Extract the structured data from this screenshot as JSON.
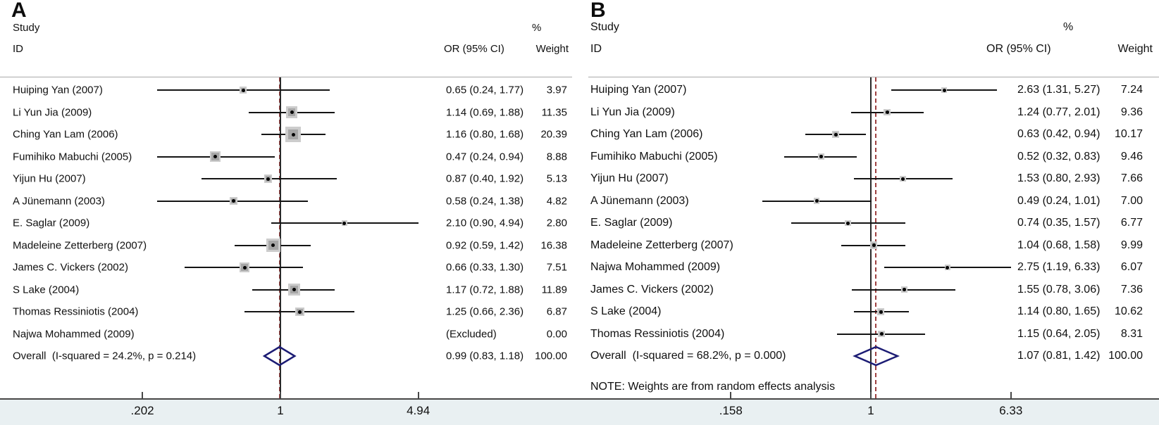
{
  "colors": {
    "diamond_outline": "#1c1c74",
    "null_line": "#2a2a2a",
    "overall_dashed_line": "#9e4040",
    "ci_line": "#141414",
    "box_fill": "#a6a6a6",
    "box_rim": "#cccccc",
    "point_dot": "#000000",
    "axis_band": "#e9f0f2",
    "axis_line": "#474747",
    "header_rule": "#a9a9a9",
    "text": "#101010"
  },
  "chart_data": [
    {
      "type": "scatter",
      "variant": "forest-plot-meta-analysis",
      "x_scale": "log",
      "letter": "A",
      "header": {
        "study": "Study",
        "id": "ID",
        "percent": "%",
        "or_ci": "OR (95% CI)",
        "weight": "Weight"
      },
      "studies": [
        {
          "label": "Huiping Yan (2007)",
          "est": 0.65,
          "lo": 0.24,
          "hi": 1.77,
          "or_text": "0.65 (0.24, 1.77)",
          "weight_text": "3.97",
          "weight_pct": 3.97
        },
        {
          "label": "Li Yun Jia (2009)",
          "est": 1.14,
          "lo": 0.69,
          "hi": 1.88,
          "or_text": "1.14 (0.69, 1.88)",
          "weight_text": "11.35",
          "weight_pct": 11.35
        },
        {
          "label": "Ching Yan Lam (2006)",
          "est": 1.16,
          "lo": 0.8,
          "hi": 1.68,
          "or_text": "1.16 (0.80, 1.68)",
          "weight_text": "20.39",
          "weight_pct": 20.39
        },
        {
          "label": "Fumihiko Mabuchi (2005)",
          "est": 0.47,
          "lo": 0.24,
          "hi": 0.94,
          "or_text": "0.47 (0.24, 0.94)",
          "weight_text": "8.88",
          "weight_pct": 8.88
        },
        {
          "label": "Yijun Hu (2007)",
          "est": 0.87,
          "lo": 0.4,
          "hi": 1.92,
          "or_text": "0.87 (0.40, 1.92)",
          "weight_text": "5.13",
          "weight_pct": 5.13
        },
        {
          "label": "A Jünemann (2003)",
          "est": 0.58,
          "lo": 0.24,
          "hi": 1.38,
          "or_text": "0.58 (0.24, 1.38)",
          "weight_text": "4.82",
          "weight_pct": 4.82
        },
        {
          "label": "E. Saglar (2009)",
          "est": 2.1,
          "lo": 0.9,
          "hi": 4.94,
          "or_text": "2.10 (0.90, 4.94)",
          "weight_text": "2.80",
          "weight_pct": 2.8
        },
        {
          "label": "Madeleine Zetterberg (2007)",
          "est": 0.92,
          "lo": 0.59,
          "hi": 1.42,
          "or_text": "0.92 (0.59, 1.42)",
          "weight_text": "16.38",
          "weight_pct": 16.38
        },
        {
          "label": "James C. Vickers (2002)",
          "est": 0.66,
          "lo": 0.33,
          "hi": 1.3,
          "or_text": "0.66 (0.33, 1.30)",
          "weight_text": "7.51",
          "weight_pct": 7.51
        },
        {
          "label": "S Lake (2004)",
          "est": 1.17,
          "lo": 0.72,
          "hi": 1.88,
          "or_text": "1.17 (0.72, 1.88)",
          "weight_text": "11.89",
          "weight_pct": 11.89
        },
        {
          "label": "Thomas Ressiniotis (2004)",
          "est": 1.25,
          "lo": 0.66,
          "hi": 2.36,
          "or_text": "1.25 (0.66, 2.36)",
          "weight_text": "6.87",
          "weight_pct": 6.87
        },
        {
          "label": "Najwa Mohammed (2009)",
          "est": null,
          "lo": null,
          "hi": null,
          "or_text": "(Excluded)",
          "weight_text": "0.00",
          "weight_pct": 0
        }
      ],
      "overall": {
        "label": "Overall  (I-squared = 24.2%, p = 0.214)",
        "est": 0.99,
        "lo": 0.83,
        "hi": 1.18,
        "or_text": "0.99 (0.83, 1.18)",
        "weight_text": "100.00"
      },
      "note": "",
      "axis_ticks": [
        {
          "label": ".202",
          "value": 0.202
        },
        {
          "label": "1",
          "value": 1
        },
        {
          "label": "4.94",
          "value": 4.94
        }
      ]
    },
    {
      "type": "scatter",
      "variant": "forest-plot-meta-analysis",
      "x_scale": "log",
      "letter": "B",
      "header": {
        "study": "Study",
        "id": "ID",
        "percent": "%",
        "or_ci": "OR (95% CI)",
        "weight": "Weight"
      },
      "studies": [
        {
          "label": "Huiping Yan (2007)",
          "est": 2.63,
          "lo": 1.31,
          "hi": 5.27,
          "or_text": "2.63 (1.31, 5.27)",
          "weight_text": "7.24",
          "weight_pct": 7.24
        },
        {
          "label": "Li Yun Jia (2009)",
          "est": 1.24,
          "lo": 0.77,
          "hi": 2.01,
          "or_text": "1.24 (0.77, 2.01)",
          "weight_text": "9.36",
          "weight_pct": 9.36
        },
        {
          "label": "Ching Yan Lam (2006)",
          "est": 0.63,
          "lo": 0.42,
          "hi": 0.94,
          "or_text": "0.63 (0.42, 0.94)",
          "weight_text": "10.17",
          "weight_pct": 10.17
        },
        {
          "label": "Fumihiko Mabuchi (2005)",
          "est": 0.52,
          "lo": 0.32,
          "hi": 0.83,
          "or_text": "0.52 (0.32, 0.83)",
          "weight_text": "9.46",
          "weight_pct": 9.46
        },
        {
          "label": "Yijun Hu (2007)",
          "est": 1.53,
          "lo": 0.8,
          "hi": 2.93,
          "or_text": "1.53 (0.80, 2.93)",
          "weight_text": "7.66",
          "weight_pct": 7.66
        },
        {
          "label": "A Jünemann (2003)",
          "est": 0.49,
          "lo": 0.24,
          "hi": 1.01,
          "or_text": "0.49 (0.24, 1.01)",
          "weight_text": "7.00",
          "weight_pct": 7.0
        },
        {
          "label": "E. Saglar (2009)",
          "est": 0.74,
          "lo": 0.35,
          "hi": 1.57,
          "or_text": "0.74 (0.35, 1.57)",
          "weight_text": "6.77",
          "weight_pct": 6.77
        },
        {
          "label": "Madeleine Zetterberg (2007)",
          "est": 1.04,
          "lo": 0.68,
          "hi": 1.58,
          "or_text": "1.04 (0.68, 1.58)",
          "weight_text": "9.99",
          "weight_pct": 9.99
        },
        {
          "label": "Najwa Mohammed (2009)",
          "est": 2.75,
          "lo": 1.19,
          "hi": 6.33,
          "or_text": "2.75 (1.19, 6.33)",
          "weight_text": "6.07",
          "weight_pct": 6.07
        },
        {
          "label": "James C. Vickers (2002)",
          "est": 1.55,
          "lo": 0.78,
          "hi": 3.06,
          "or_text": "1.55 (0.78, 3.06)",
          "weight_text": "7.36",
          "weight_pct": 7.36
        },
        {
          "label": "S Lake (2004)",
          "est": 1.14,
          "lo": 0.8,
          "hi": 1.65,
          "or_text": "1.14 (0.80, 1.65)",
          "weight_text": "10.62",
          "weight_pct": 10.62
        },
        {
          "label": "Thomas Ressiniotis (2004)",
          "est": 1.15,
          "lo": 0.64,
          "hi": 2.05,
          "or_text": "1.15 (0.64, 2.05)",
          "weight_text": "8.31",
          "weight_pct": 8.31
        }
      ],
      "overall": {
        "label": "Overall  (I-squared = 68.2%, p = 0.000)",
        "est": 1.07,
        "lo": 0.81,
        "hi": 1.42,
        "or_text": "1.07 (0.81, 1.42)",
        "weight_text": "100.00"
      },
      "note": "NOTE: Weights are from random effects analysis",
      "axis_ticks": [
        {
          "label": ".158",
          "value": 0.158
        },
        {
          "label": "1",
          "value": 1
        },
        {
          "label": "6.33",
          "value": 6.33
        }
      ]
    }
  ]
}
